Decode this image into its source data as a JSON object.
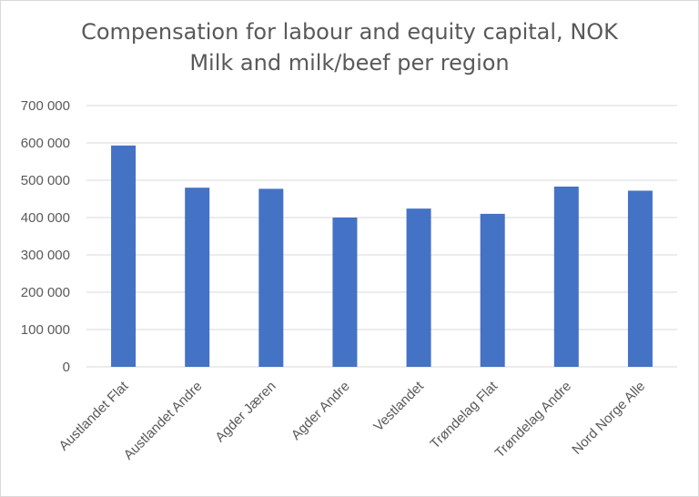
{
  "chart_data": {
    "type": "bar",
    "title_line1": "Compensation for labour and equity capital, NOK",
    "title_line2": "Milk and milk/beef per region",
    "categories": [
      "Austlandet Flat",
      "Austlandet Andre",
      "Agder Jæren",
      "Agder Andre",
      "Vestlandet",
      "Trøndelag Flat",
      "Trøndelag Andre",
      "Nord Norge Alle"
    ],
    "values": [
      593000,
      480000,
      477000,
      400000,
      424000,
      410000,
      483000,
      472000
    ],
    "ylim": [
      0,
      700000
    ],
    "ytick_values": [
      0,
      100000,
      200000,
      300000,
      400000,
      500000,
      600000,
      700000
    ],
    "ytick_labels": [
      "0",
      "100 000",
      "200 000",
      "300 000",
      "400 000",
      "500 000",
      "600 000",
      "700 000"
    ],
    "xlabel": "",
    "ylabel": "",
    "grid": true,
    "legend": "none",
    "bar_color": "#4472C4",
    "grid_color": "#d9d9d9"
  }
}
